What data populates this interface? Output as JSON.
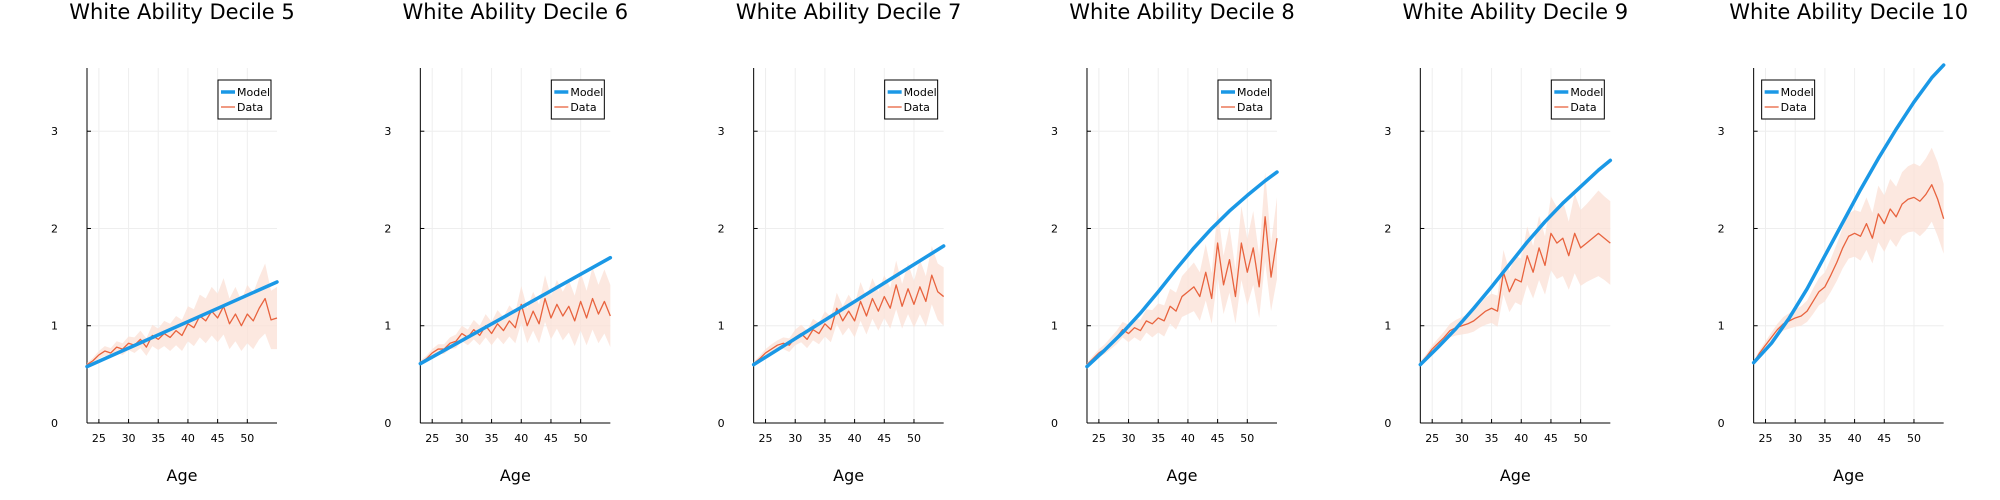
{
  "colors": {
    "model": "#1a98e6",
    "data": "#e8633e",
    "band": "#fbe0d6",
    "grid": "#eeeeee",
    "axis": "#000000"
  },
  "chart_data": [
    {
      "type": "line",
      "title": "White Ability Decile 5",
      "xlabel": "Age",
      "xlim": [
        23,
        55
      ],
      "ylim": [
        0,
        3.65
      ],
      "xticks": [
        25,
        30,
        35,
        40,
        45,
        50
      ],
      "yticks": [
        0,
        1,
        2,
        3
      ],
      "legend": "top-right",
      "series": [
        {
          "name": "Model",
          "x": [
            23,
            55
          ],
          "y": [
            0.58,
            1.45
          ]
        },
        {
          "name": "Data",
          "x": [
            23,
            24,
            25,
            26,
            27,
            28,
            29,
            30,
            31,
            32,
            33,
            34,
            35,
            36,
            37,
            38,
            39,
            40,
            41,
            42,
            43,
            44,
            45,
            46,
            47,
            48,
            49,
            50,
            51,
            52,
            53,
            54,
            55
          ],
          "y": [
            0.6,
            0.64,
            0.7,
            0.74,
            0.72,
            0.78,
            0.76,
            0.82,
            0.8,
            0.86,
            0.78,
            0.9,
            0.86,
            0.92,
            0.88,
            0.95,
            0.9,
            1.02,
            0.98,
            1.1,
            1.05,
            1.15,
            1.08,
            1.2,
            1.02,
            1.12,
            1.0,
            1.12,
            1.05,
            1.18,
            1.28,
            1.06,
            1.08
          ],
          "lower": [
            0.58,
            0.61,
            0.66,
            0.69,
            0.67,
            0.72,
            0.7,
            0.75,
            0.72,
            0.77,
            0.69,
            0.79,
            0.75,
            0.79,
            0.74,
            0.8,
            0.74,
            0.84,
            0.79,
            0.88,
            0.82,
            0.9,
            0.83,
            0.91,
            0.76,
            0.84,
            0.74,
            0.82,
            0.76,
            0.86,
            0.92,
            0.76,
            0.76
          ],
          "upper": [
            0.62,
            0.67,
            0.74,
            0.79,
            0.77,
            0.84,
            0.82,
            0.89,
            0.88,
            0.95,
            0.87,
            1.01,
            0.97,
            1.05,
            1.02,
            1.1,
            1.06,
            1.2,
            1.17,
            1.32,
            1.28,
            1.4,
            1.33,
            1.49,
            1.28,
            1.4,
            1.26,
            1.42,
            1.34,
            1.5,
            1.64,
            1.36,
            1.4
          ]
        }
      ]
    },
    {
      "type": "line",
      "title": "White Ability Decile 6",
      "xlabel": "Age",
      "xlim": [
        23,
        55
      ],
      "ylim": [
        0,
        3.65
      ],
      "xticks": [
        25,
        30,
        35,
        40,
        45,
        50
      ],
      "yticks": [
        0,
        1,
        2,
        3
      ],
      "legend": "top-right",
      "series": [
        {
          "name": "Model",
          "x": [
            23,
            55
          ],
          "y": [
            0.61,
            1.7
          ]
        },
        {
          "name": "Data",
          "x": [
            23,
            24,
            25,
            26,
            27,
            28,
            29,
            30,
            31,
            32,
            33,
            34,
            35,
            36,
            37,
            38,
            39,
            40,
            41,
            42,
            43,
            44,
            45,
            46,
            47,
            48,
            49,
            50,
            51,
            52,
            53,
            54,
            55
          ],
          "y": [
            0.62,
            0.66,
            0.72,
            0.76,
            0.76,
            0.82,
            0.84,
            0.92,
            0.88,
            0.96,
            0.9,
            1.0,
            0.92,
            1.02,
            0.95,
            1.05,
            0.98,
            1.22,
            1.0,
            1.15,
            1.02,
            1.28,
            1.08,
            1.22,
            1.1,
            1.2,
            1.05,
            1.25,
            1.08,
            1.28,
            1.12,
            1.25,
            1.1
          ],
          "lower": [
            0.6,
            0.63,
            0.68,
            0.71,
            0.71,
            0.76,
            0.77,
            0.84,
            0.8,
            0.86,
            0.8,
            0.88,
            0.8,
            0.88,
            0.81,
            0.89,
            0.82,
            1.03,
            0.82,
            0.95,
            0.82,
            1.04,
            0.86,
            0.97,
            0.85,
            0.93,
            0.79,
            0.95,
            0.8,
            0.96,
            0.82,
            0.92,
            0.78
          ],
          "upper": [
            0.64,
            0.69,
            0.76,
            0.81,
            0.81,
            0.88,
            0.91,
            1.0,
            0.96,
            1.06,
            1.0,
            1.12,
            1.04,
            1.16,
            1.09,
            1.21,
            1.14,
            1.41,
            1.18,
            1.35,
            1.22,
            1.52,
            1.3,
            1.47,
            1.35,
            1.47,
            1.31,
            1.55,
            1.36,
            1.6,
            1.42,
            1.58,
            1.42
          ]
        }
      ]
    },
    {
      "type": "line",
      "title": "White Ability Decile 7",
      "xlabel": "Age",
      "xlim": [
        23,
        55
      ],
      "ylim": [
        0,
        3.65
      ],
      "xticks": [
        25,
        30,
        35,
        40,
        45,
        50
      ],
      "yticks": [
        0,
        1,
        2,
        3
      ],
      "legend": "top-right",
      "series": [
        {
          "name": "Model",
          "x": [
            23,
            55
          ],
          "y": [
            0.6,
            1.82
          ]
        },
        {
          "name": "Data",
          "x": [
            23,
            24,
            25,
            26,
            27,
            28,
            29,
            30,
            31,
            32,
            33,
            34,
            35,
            36,
            37,
            38,
            39,
            40,
            41,
            42,
            43,
            44,
            45,
            46,
            47,
            48,
            49,
            50,
            51,
            52,
            53,
            54,
            55
          ],
          "y": [
            0.61,
            0.66,
            0.72,
            0.76,
            0.8,
            0.82,
            0.8,
            0.88,
            0.92,
            0.86,
            0.96,
            0.92,
            1.02,
            0.96,
            1.18,
            1.05,
            1.15,
            1.05,
            1.25,
            1.1,
            1.28,
            1.15,
            1.3,
            1.18,
            1.42,
            1.2,
            1.38,
            1.22,
            1.4,
            1.25,
            1.52,
            1.35,
            1.3
          ],
          "lower": [
            0.59,
            0.63,
            0.68,
            0.71,
            0.75,
            0.76,
            0.73,
            0.8,
            0.83,
            0.77,
            0.85,
            0.81,
            0.89,
            0.83,
            1.02,
            0.9,
            0.98,
            0.88,
            1.05,
            0.91,
            1.07,
            0.95,
            1.08,
            0.97,
            1.17,
            0.97,
            1.12,
            0.98,
            1.12,
            0.99,
            1.22,
            1.06,
            1.0
          ],
          "upper": [
            0.63,
            0.69,
            0.76,
            0.81,
            0.85,
            0.88,
            0.87,
            0.96,
            1.01,
            0.95,
            1.07,
            1.03,
            1.15,
            1.09,
            1.34,
            1.2,
            1.32,
            1.22,
            1.45,
            1.29,
            1.49,
            1.35,
            1.52,
            1.39,
            1.67,
            1.43,
            1.64,
            1.46,
            1.68,
            1.51,
            1.82,
            1.64,
            1.6
          ]
        }
      ]
    },
    {
      "type": "line",
      "title": "White Ability Decile 8",
      "xlabel": "Age",
      "xlim": [
        23,
        55
      ],
      "ylim": [
        0,
        3.65
      ],
      "xticks": [
        25,
        30,
        35,
        40,
        45,
        50
      ],
      "yticks": [
        0,
        1,
        2,
        3
      ],
      "legend": "top-right",
      "series": [
        {
          "name": "Model",
          "x": [
            23,
            26,
            29,
            32,
            35,
            38,
            41,
            44,
            47,
            50,
            53,
            55
          ],
          "y": [
            0.58,
            0.75,
            0.93,
            1.13,
            1.35,
            1.58,
            1.8,
            2.0,
            2.18,
            2.34,
            2.49,
            2.58
          ]
        },
        {
          "name": "Data",
          "x": [
            23,
            24,
            25,
            26,
            27,
            28,
            29,
            30,
            31,
            32,
            33,
            34,
            35,
            36,
            37,
            38,
            39,
            40,
            41,
            42,
            43,
            44,
            45,
            46,
            47,
            48,
            49,
            50,
            51,
            52,
            53,
            54,
            55
          ],
          "y": [
            0.6,
            0.66,
            0.72,
            0.76,
            0.82,
            0.88,
            0.96,
            0.92,
            0.98,
            0.95,
            1.05,
            1.02,
            1.08,
            1.05,
            1.2,
            1.15,
            1.3,
            1.35,
            1.4,
            1.3,
            1.55,
            1.28,
            1.85,
            1.42,
            1.68,
            1.3,
            1.85,
            1.55,
            1.8,
            1.4,
            2.12,
            1.5,
            1.9
          ],
          "lower": [
            0.58,
            0.63,
            0.68,
            0.71,
            0.76,
            0.81,
            0.88,
            0.83,
            0.88,
            0.84,
            0.93,
            0.88,
            0.93,
            0.89,
            1.02,
            0.96,
            1.09,
            1.12,
            1.15,
            1.05,
            1.26,
            1.02,
            1.5,
            1.12,
            1.34,
            1.02,
            1.47,
            1.21,
            1.42,
            1.08,
            1.66,
            1.15,
            1.48
          ],
          "upper": [
            0.62,
            0.69,
            0.76,
            0.81,
            0.88,
            0.95,
            1.04,
            1.01,
            1.08,
            1.06,
            1.17,
            1.16,
            1.23,
            1.21,
            1.38,
            1.34,
            1.51,
            1.58,
            1.65,
            1.55,
            1.84,
            1.54,
            2.2,
            1.72,
            2.02,
            1.58,
            2.23,
            1.89,
            2.18,
            1.72,
            2.58,
            1.85,
            2.32
          ]
        }
      ]
    },
    {
      "type": "line",
      "title": "White Ability Decile 9",
      "xlabel": "Age",
      "xlim": [
        23,
        55
      ],
      "ylim": [
        0,
        3.65
      ],
      "xticks": [
        25,
        30,
        35,
        40,
        45,
        50
      ],
      "yticks": [
        0,
        1,
        2,
        3
      ],
      "legend": "top-right",
      "series": [
        {
          "name": "Model",
          "x": [
            23,
            26,
            29,
            32,
            35,
            38,
            41,
            44,
            47,
            50,
            53,
            55
          ],
          "y": [
            0.6,
            0.78,
            0.97,
            1.18,
            1.4,
            1.63,
            1.86,
            2.07,
            2.26,
            2.43,
            2.6,
            2.7
          ]
        },
        {
          "name": "Data",
          "x": [
            23,
            24,
            25,
            26,
            27,
            28,
            29,
            30,
            31,
            32,
            33,
            34,
            35,
            36,
            37,
            38,
            39,
            40,
            41,
            42,
            43,
            44,
            45,
            46,
            47,
            48,
            49,
            50,
            51,
            52,
            53,
            54,
            55
          ],
          "y": [
            0.61,
            0.68,
            0.76,
            0.82,
            0.88,
            0.95,
            0.98,
            1.0,
            1.02,
            1.05,
            1.1,
            1.15,
            1.18,
            1.15,
            1.55,
            1.35,
            1.48,
            1.45,
            1.72,
            1.55,
            1.8,
            1.62,
            1.95,
            1.85,
            1.9,
            1.72,
            1.95,
            1.8,
            1.85,
            1.9,
            1.95,
            1.9,
            1.85
          ],
          "lower": [
            0.59,
            0.65,
            0.72,
            0.77,
            0.82,
            0.88,
            0.9,
            0.91,
            0.92,
            0.94,
            0.98,
            1.01,
            1.03,
            0.99,
            1.32,
            1.14,
            1.24,
            1.21,
            1.42,
            1.28,
            1.47,
            1.32,
            1.57,
            1.48,
            1.51,
            1.37,
            1.54,
            1.41,
            1.45,
            1.48,
            1.51,
            1.47,
            1.42
          ],
          "upper": [
            0.63,
            0.71,
            0.8,
            0.87,
            0.94,
            1.02,
            1.06,
            1.09,
            1.12,
            1.16,
            1.22,
            1.29,
            1.33,
            1.31,
            1.78,
            1.56,
            1.72,
            1.69,
            2.02,
            1.82,
            2.13,
            1.92,
            2.33,
            2.22,
            2.29,
            2.07,
            2.36,
            2.19,
            2.25,
            2.32,
            2.39,
            2.33,
            2.28
          ]
        }
      ]
    },
    {
      "type": "line",
      "title": "White Ability Decile 10",
      "xlabel": "Age",
      "xlim": [
        23,
        55
      ],
      "ylim": [
        0,
        3.65
      ],
      "xticks": [
        25,
        30,
        35,
        40,
        45,
        50
      ],
      "yticks": [
        0,
        1,
        2,
        3
      ],
      "legend": "top-left",
      "series": [
        {
          "name": "Model",
          "x": [
            23,
            26,
            29,
            32,
            35,
            38,
            41,
            44,
            47,
            50,
            53,
            55
          ],
          "y": [
            0.62,
            0.82,
            1.08,
            1.38,
            1.72,
            2.06,
            2.4,
            2.72,
            3.02,
            3.3,
            3.55,
            3.68
          ]
        },
        {
          "name": "Data",
          "x": [
            23,
            24,
            25,
            26,
            27,
            28,
            29,
            30,
            31,
            32,
            33,
            34,
            35,
            36,
            37,
            38,
            39,
            40,
            41,
            42,
            43,
            44,
            45,
            46,
            47,
            48,
            49,
            50,
            51,
            52,
            53,
            54,
            55
          ],
          "y": [
            0.62,
            0.72,
            0.8,
            0.88,
            0.96,
            1.02,
            1.05,
            1.08,
            1.1,
            1.15,
            1.25,
            1.35,
            1.4,
            1.52,
            1.65,
            1.8,
            1.92,
            1.95,
            1.92,
            2.05,
            1.9,
            2.15,
            2.05,
            2.2,
            2.12,
            2.25,
            2.3,
            2.32,
            2.28,
            2.35,
            2.45,
            2.3,
            2.1
          ],
          "lower": [
            0.6,
            0.69,
            0.76,
            0.83,
            0.9,
            0.95,
            0.97,
            0.99,
            1.0,
            1.04,
            1.12,
            1.21,
            1.25,
            1.35,
            1.46,
            1.59,
            1.69,
            1.71,
            1.67,
            1.78,
            1.64,
            1.86,
            1.76,
            1.89,
            1.81,
            1.92,
            1.96,
            1.97,
            1.92,
            1.98,
            2.07,
            1.92,
            1.74
          ],
          "upper": [
            0.64,
            0.75,
            0.84,
            0.93,
            1.02,
            1.09,
            1.13,
            1.17,
            1.2,
            1.26,
            1.38,
            1.49,
            1.55,
            1.69,
            1.84,
            2.01,
            2.15,
            2.19,
            2.17,
            2.32,
            2.16,
            2.44,
            2.34,
            2.51,
            2.43,
            2.58,
            2.64,
            2.67,
            2.64,
            2.72,
            2.83,
            2.68,
            2.46
          ]
        }
      ]
    }
  ]
}
